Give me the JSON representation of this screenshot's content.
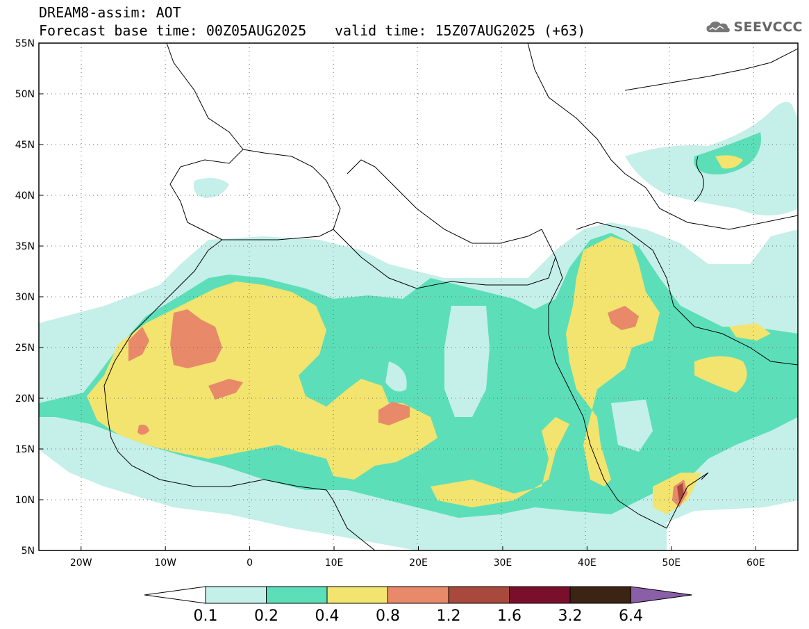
{
  "header": {
    "title_line1": "DREAM8-assim: AOT",
    "title_line2": "Forecast base time: 00Z05AUG2025",
    "valid_time": "valid time: 15Z07AUG2025 (+63)",
    "logo_text": "SEEVCCC"
  },
  "map": {
    "projection": "lat-lon",
    "lon_range": [
      -25,
      65
    ],
    "lat_range": [
      5,
      55
    ],
    "lat_ticks": [
      "55N",
      "50N",
      "45N",
      "40N",
      "35N",
      "30N",
      "25N",
      "20N",
      "15N",
      "10N",
      "5N"
    ],
    "lon_ticks": [
      "20W",
      "10W",
      "0",
      "10E",
      "20E",
      "30E",
      "40E",
      "50E",
      "60E"
    ],
    "grid": "dotted"
  },
  "colorbar": {
    "labels": [
      "0.1",
      "0.2",
      "0.4",
      "0.8",
      "1.2",
      "1.6",
      "3.2",
      "6.4"
    ],
    "colors": [
      "#ffffff",
      "#c5efe9",
      "#5cdfb8",
      "#f2e46e",
      "#e8896a",
      "#a9483c",
      "#7a0f2b",
      "#3b2414",
      "#8b5ea8"
    ]
  }
}
